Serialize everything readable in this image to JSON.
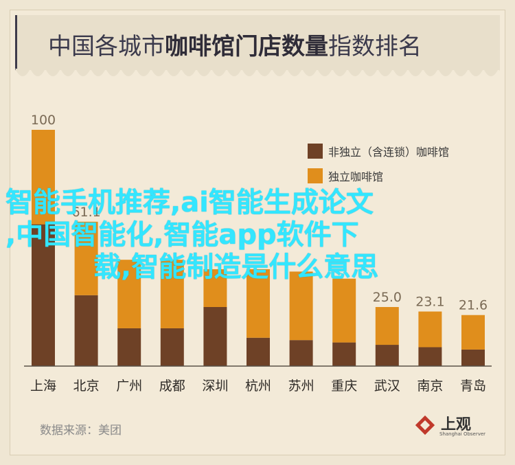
{
  "title_normal": "中国各城市",
  "title_bold": "咖啡馆门店数量",
  "title_tail": "指数排名",
  "source": "数据来源：美团",
  "publisher": {
    "name": "上观",
    "sub": "Shanghai Observer"
  },
  "overlay": {
    "line1": "智能手机推荐,ai智能生成论文",
    "line2": ",中国智能化,智能app软件下",
    "line3": "载,智能制造是什么意思"
  },
  "colors": {
    "non_independent": "#6e4126",
    "independent": "#e08e1c"
  },
  "chart_data": {
    "type": "bar",
    "stacked": true,
    "categories": [
      "上海",
      "北京",
      "广州",
      "成都",
      "深圳",
      "杭州",
      "苏州",
      "重庆",
      "武汉",
      "南京",
      "青岛"
    ],
    "totals": [
      100,
      61.1,
      45,
      45,
      41,
      41,
      40,
      37,
      25.0,
      23.1,
      21.6
    ],
    "total_labels": [
      "100",
      "61.1",
      "",
      "",
      "",
      "",
      "",
      "",
      "25.0",
      "23.1",
      "21.6"
    ],
    "series": [
      {
        "name": "非独立（含连锁）咖啡馆",
        "values": [
          60,
          30,
          16,
          16,
          25,
          12,
          11,
          10,
          9,
          8,
          7
        ]
      },
      {
        "name": "独立咖啡馆",
        "values": [
          40,
          31.1,
          29,
          29,
          16,
          29,
          29,
          27,
          16,
          15.1,
          14.6
        ]
      }
    ],
    "ylim": [
      0,
      100
    ]
  }
}
